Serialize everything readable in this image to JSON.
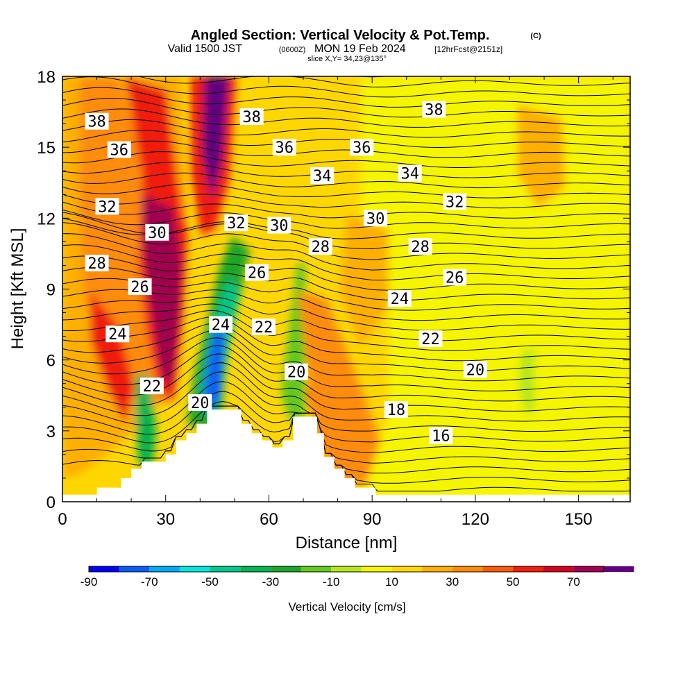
{
  "title": {
    "main": "Angled Section: Vertical Velocity & Pot.Temp.",
    "copyright": "(C)",
    "line2_a": "Valid 1500 JST",
    "line2_utc": "(0600Z)",
    "line2_b": "MON 19 Feb 2024",
    "line2_fcst": "[12hrFcst@2151z]",
    "line3": "slice X,Y= 34,23@135°"
  },
  "chart_data": {
    "type": "cross-section contour",
    "xlabel": "Distance [nm]",
    "ylabel": "Height [Kft MSL]",
    "xlim": [
      0,
      165
    ],
    "ylim": [
      0,
      18
    ],
    "x_ticks": [
      "0",
      "30",
      "60",
      "90",
      "120",
      "150"
    ],
    "y_ticks": [
      "0",
      "3",
      "6",
      "9",
      "12",
      "15",
      "18"
    ],
    "terrain": [
      [
        10,
        0.6
      ],
      [
        17,
        0.6
      ],
      [
        17,
        1.0
      ],
      [
        20,
        1.0
      ],
      [
        20,
        1.4
      ],
      [
        23,
        1.4
      ],
      [
        23,
        1.7
      ],
      [
        30,
        1.7
      ],
      [
        30,
        2.0
      ],
      [
        33,
        2.0
      ],
      [
        33,
        2.6
      ],
      [
        36,
        2.6
      ],
      [
        36,
        2.9
      ],
      [
        39,
        2.9
      ],
      [
        39,
        3.3
      ],
      [
        42,
        3.3
      ],
      [
        42,
        3.9
      ],
      [
        52,
        3.9
      ],
      [
        52,
        3.3
      ],
      [
        55,
        3.3
      ],
      [
        55,
        2.9
      ],
      [
        58,
        2.9
      ],
      [
        58,
        2.6
      ],
      [
        61,
        2.6
      ],
      [
        61,
        2.3
      ],
      [
        64,
        2.3
      ],
      [
        64,
        2.6
      ],
      [
        67,
        2.6
      ],
      [
        67,
        3.6
      ],
      [
        74,
        3.6
      ],
      [
        74,
        2.9
      ],
      [
        76,
        2.9
      ],
      [
        76,
        1.9
      ],
      [
        79,
        1.9
      ],
      [
        79,
        1.4
      ],
      [
        82,
        1.4
      ],
      [
        82,
        1.0
      ],
      [
        85,
        1.0
      ],
      [
        85,
        0.6
      ],
      [
        91,
        0.6
      ],
      [
        91,
        0.3
      ],
      [
        165,
        0.3
      ]
    ],
    "theta_labels": [
      {
        "text": "38",
        "x": 10,
        "y": 16.1
      },
      {
        "text": "38",
        "x": 55,
        "y": 16.3
      },
      {
        "text": "38",
        "x": 108,
        "y": 16.6
      },
      {
        "text": "36",
        "x": 16.5,
        "y": 14.9
      },
      {
        "text": "36",
        "x": 64.5,
        "y": 15.0
      },
      {
        "text": "36",
        "x": 87,
        "y": 15.0
      },
      {
        "text": "34",
        "x": 75.5,
        "y": 13.8
      },
      {
        "text": "34",
        "x": 101,
        "y": 13.9
      },
      {
        "text": "32",
        "x": 13,
        "y": 12.5
      },
      {
        "text": "32",
        "x": 50.5,
        "y": 11.8
      },
      {
        "text": "32",
        "x": 114,
        "y": 12.7
      },
      {
        "text": "30",
        "x": 27.5,
        "y": 11.4
      },
      {
        "text": "30",
        "x": 63,
        "y": 11.7
      },
      {
        "text": "30",
        "x": 91,
        "y": 12.0
      },
      {
        "text": "28",
        "x": 10,
        "y": 10.1
      },
      {
        "text": "28",
        "x": 75,
        "y": 10.8
      },
      {
        "text": "28",
        "x": 104,
        "y": 10.8
      },
      {
        "text": "26",
        "x": 22.5,
        "y": 9.1
      },
      {
        "text": "26",
        "x": 56.5,
        "y": 9.7
      },
      {
        "text": "26",
        "x": 114,
        "y": 9.5
      },
      {
        "text": "24",
        "x": 16,
        "y": 7.1
      },
      {
        "text": "24",
        "x": 46,
        "y": 7.5
      },
      {
        "text": "24",
        "x": 98,
        "y": 8.6
      },
      {
        "text": "22",
        "x": 26,
        "y": 4.9
      },
      {
        "text": "22",
        "x": 58.5,
        "y": 7.4
      },
      {
        "text": "22",
        "x": 107,
        "y": 6.9
      },
      {
        "text": "20",
        "x": 40,
        "y": 4.2
      },
      {
        "text": "20",
        "x": 68,
        "y": 5.5
      },
      {
        "text": "20",
        "x": 120,
        "y": 5.6
      },
      {
        "text": "18",
        "x": 97,
        "y": 3.9
      },
      {
        "text": "16",
        "x": 110,
        "y": 2.8
      }
    ],
    "colorbar": {
      "label": "Vertical Velocity [cm/s]",
      "tick_labels": [
        "-90",
        "-70",
        "-50",
        "-30",
        "-10",
        "10",
        "30",
        "50",
        "70"
      ],
      "range": [
        -90,
        80
      ],
      "step": 10,
      "colors": [
        "#0000f5",
        "#0b5cf5",
        "#00a8f5",
        "#00e6dc",
        "#00c88c",
        "#00b450",
        "#1ea528",
        "#64c81e",
        "#b4e61e",
        "#f5f500",
        "#ffd700",
        "#ffaf00",
        "#ff8c0a",
        "#ff5a0a",
        "#f01e0a",
        "#d2001e",
        "#a00050",
        "#600080"
      ]
    }
  }
}
